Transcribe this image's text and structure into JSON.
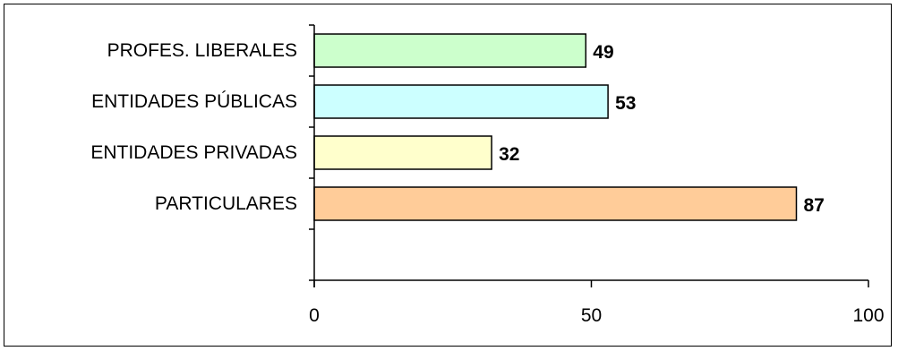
{
  "chart_data": {
    "type": "bar",
    "orientation": "horizontal",
    "categories": [
      "PROFES. LIBERALES",
      "ENTIDADES PÚBLICAS",
      "ENTIDADES PRIVADAS",
      "PARTICULARES"
    ],
    "values": [
      49,
      53,
      32,
      87
    ],
    "value_labels": [
      "49",
      "53",
      "32",
      "87"
    ],
    "colors": [
      "#ccffcc",
      "#ccffff",
      "#ffffcc",
      "#ffcc99"
    ],
    "bar_border_color": "#000000",
    "xlim": [
      0,
      100
    ],
    "x_ticks": [
      0,
      50,
      100
    ],
    "x_tick_labels": [
      "0",
      "50",
      "100"
    ],
    "grid": false,
    "legend": "none",
    "title": "",
    "xlabel": "",
    "ylabel": ""
  }
}
